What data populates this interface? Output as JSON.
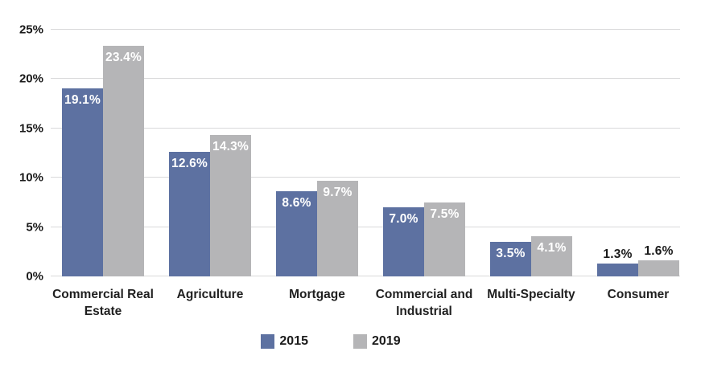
{
  "chart_data": {
    "type": "bar",
    "categories": [
      "Commercial Real Estate",
      "Agriculture",
      "Mortgage",
      "Commercial and Industrial",
      "Multi-Specialty",
      "Consumer"
    ],
    "series": [
      {
        "name": "2015",
        "color": "#5d71a1",
        "values": [
          19.1,
          12.6,
          8.6,
          7.0,
          3.5,
          1.3
        ],
        "labels": [
          "19.1%",
          "12.6%",
          "8.6%",
          "7.0%",
          "3.5%",
          "1.3%"
        ]
      },
      {
        "name": "2019",
        "color": "#b5b5b7",
        "values": [
          23.4,
          14.3,
          9.7,
          7.5,
          4.1,
          1.6
        ],
        "labels": [
          "23.4%",
          "14.3%",
          "9.7%",
          "7.5%",
          "4.1%",
          "1.6%"
        ]
      }
    ],
    "ylim": [
      0,
      25
    ],
    "y_tick_step": 5,
    "y_tick_labels": [
      "0%",
      "5%",
      "10%",
      "15%",
      "20%",
      "25%"
    ],
    "grid": true,
    "gridline_color": "#d9d9da",
    "legend_position": "bottom",
    "bar_label_color_inside": "#ffffff",
    "bar_label_color_outside": "#1a1a1a"
  }
}
